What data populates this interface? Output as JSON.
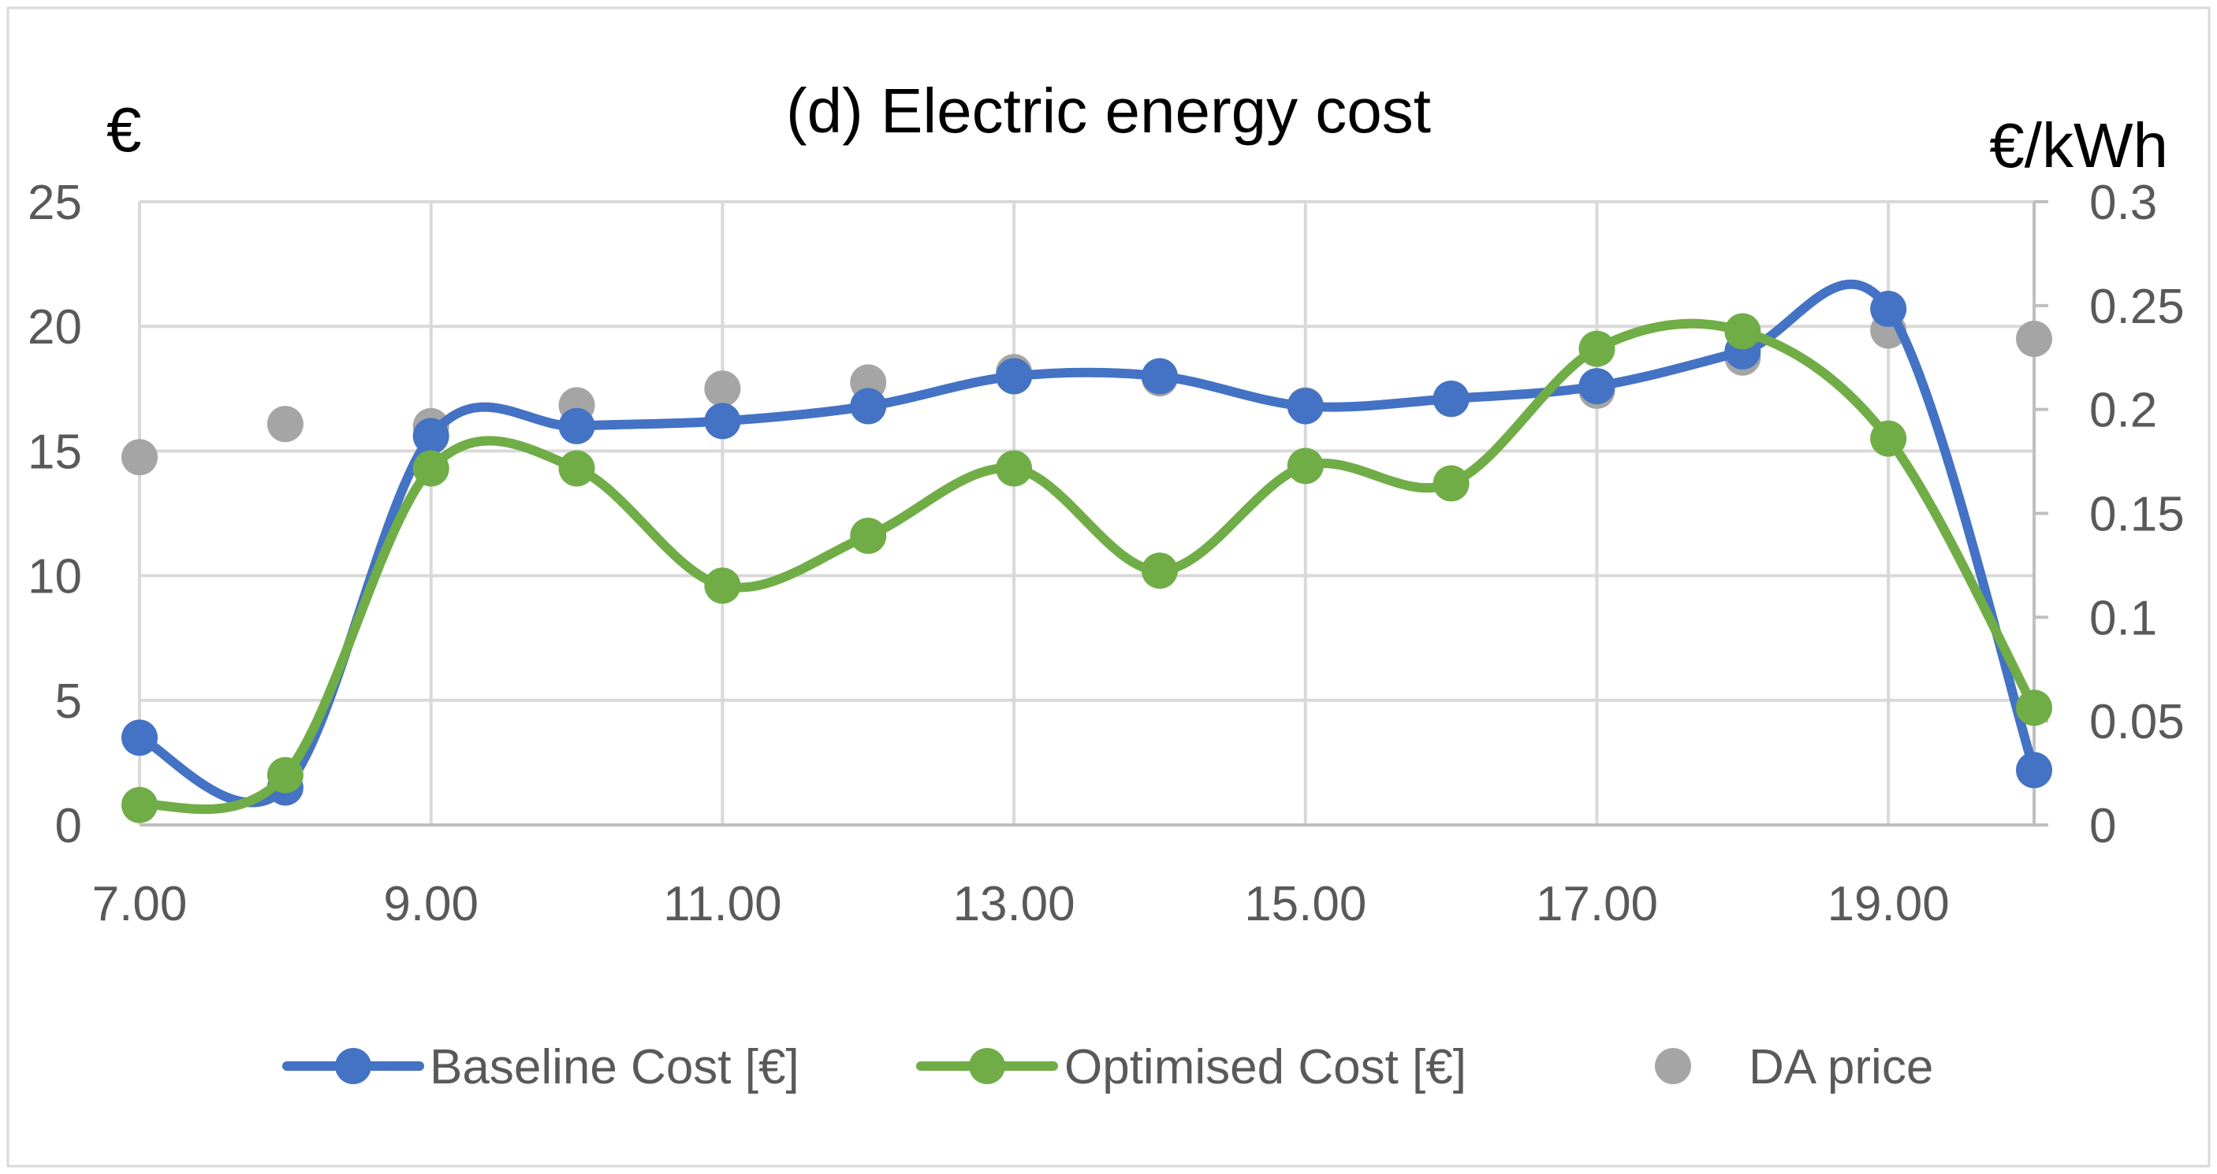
{
  "chart_data": {
    "type": "line",
    "title": "(d) Electric energy cost",
    "y_left_label": "€",
    "y_right_label": "€/kWh",
    "x_tick_labels": [
      "7.00",
      "9.00",
      "11.00",
      "13.00",
      "15.00",
      "17.00",
      "19.00"
    ],
    "x_tick_values": [
      7,
      9,
      11,
      13,
      15,
      17,
      19
    ],
    "x": [
      7,
      8,
      9,
      10,
      11,
      12,
      13,
      14,
      15,
      16,
      17,
      18,
      19,
      20
    ],
    "xlim": [
      7,
      20
    ],
    "ylim_left": [
      0,
      25
    ],
    "ylim_right": [
      0,
      0.3
    ],
    "y_left_ticks": [
      "0",
      "5",
      "10",
      "15",
      "20",
      "25"
    ],
    "y_left_tick_values": [
      0,
      5,
      10,
      15,
      20,
      25
    ],
    "y_right_ticks": [
      "0",
      "0.05",
      "0.1",
      "0.15",
      "0.2",
      "0.25",
      "0.3"
    ],
    "y_right_tick_values": [
      0,
      0.05,
      0.1,
      0.15,
      0.2,
      0.25,
      0.3
    ],
    "grid": true,
    "legend_position": "bottom",
    "series": [
      {
        "name": "Baseline Cost [€]",
        "axis": "left",
        "style": "smooth-line-markers",
        "color": "#4472C4",
        "values": [
          3.5,
          1.5,
          15.6,
          16.0,
          16.2,
          16.8,
          18.0,
          18.0,
          16.8,
          17.1,
          17.6,
          19.0,
          20.7,
          2.2
        ]
      },
      {
        "name": "Optimised Cost [€]",
        "axis": "left",
        "style": "smooth-line-markers",
        "color": "#70AD47",
        "values": [
          0.8,
          2.0,
          14.3,
          14.3,
          9.6,
          11.6,
          14.3,
          10.2,
          14.4,
          13.7,
          19.1,
          19.8,
          15.5,
          4.7
        ]
      },
      {
        "name": "DA price",
        "axis": "right",
        "style": "markers",
        "color": "#A5A5A5",
        "values": [
          0.177,
          0.193,
          0.192,
          0.202,
          0.21,
          0.213,
          0.218,
          0.215,
          0.202,
          0.205,
          0.209,
          0.225,
          0.238,
          0.234
        ]
      }
    ]
  }
}
